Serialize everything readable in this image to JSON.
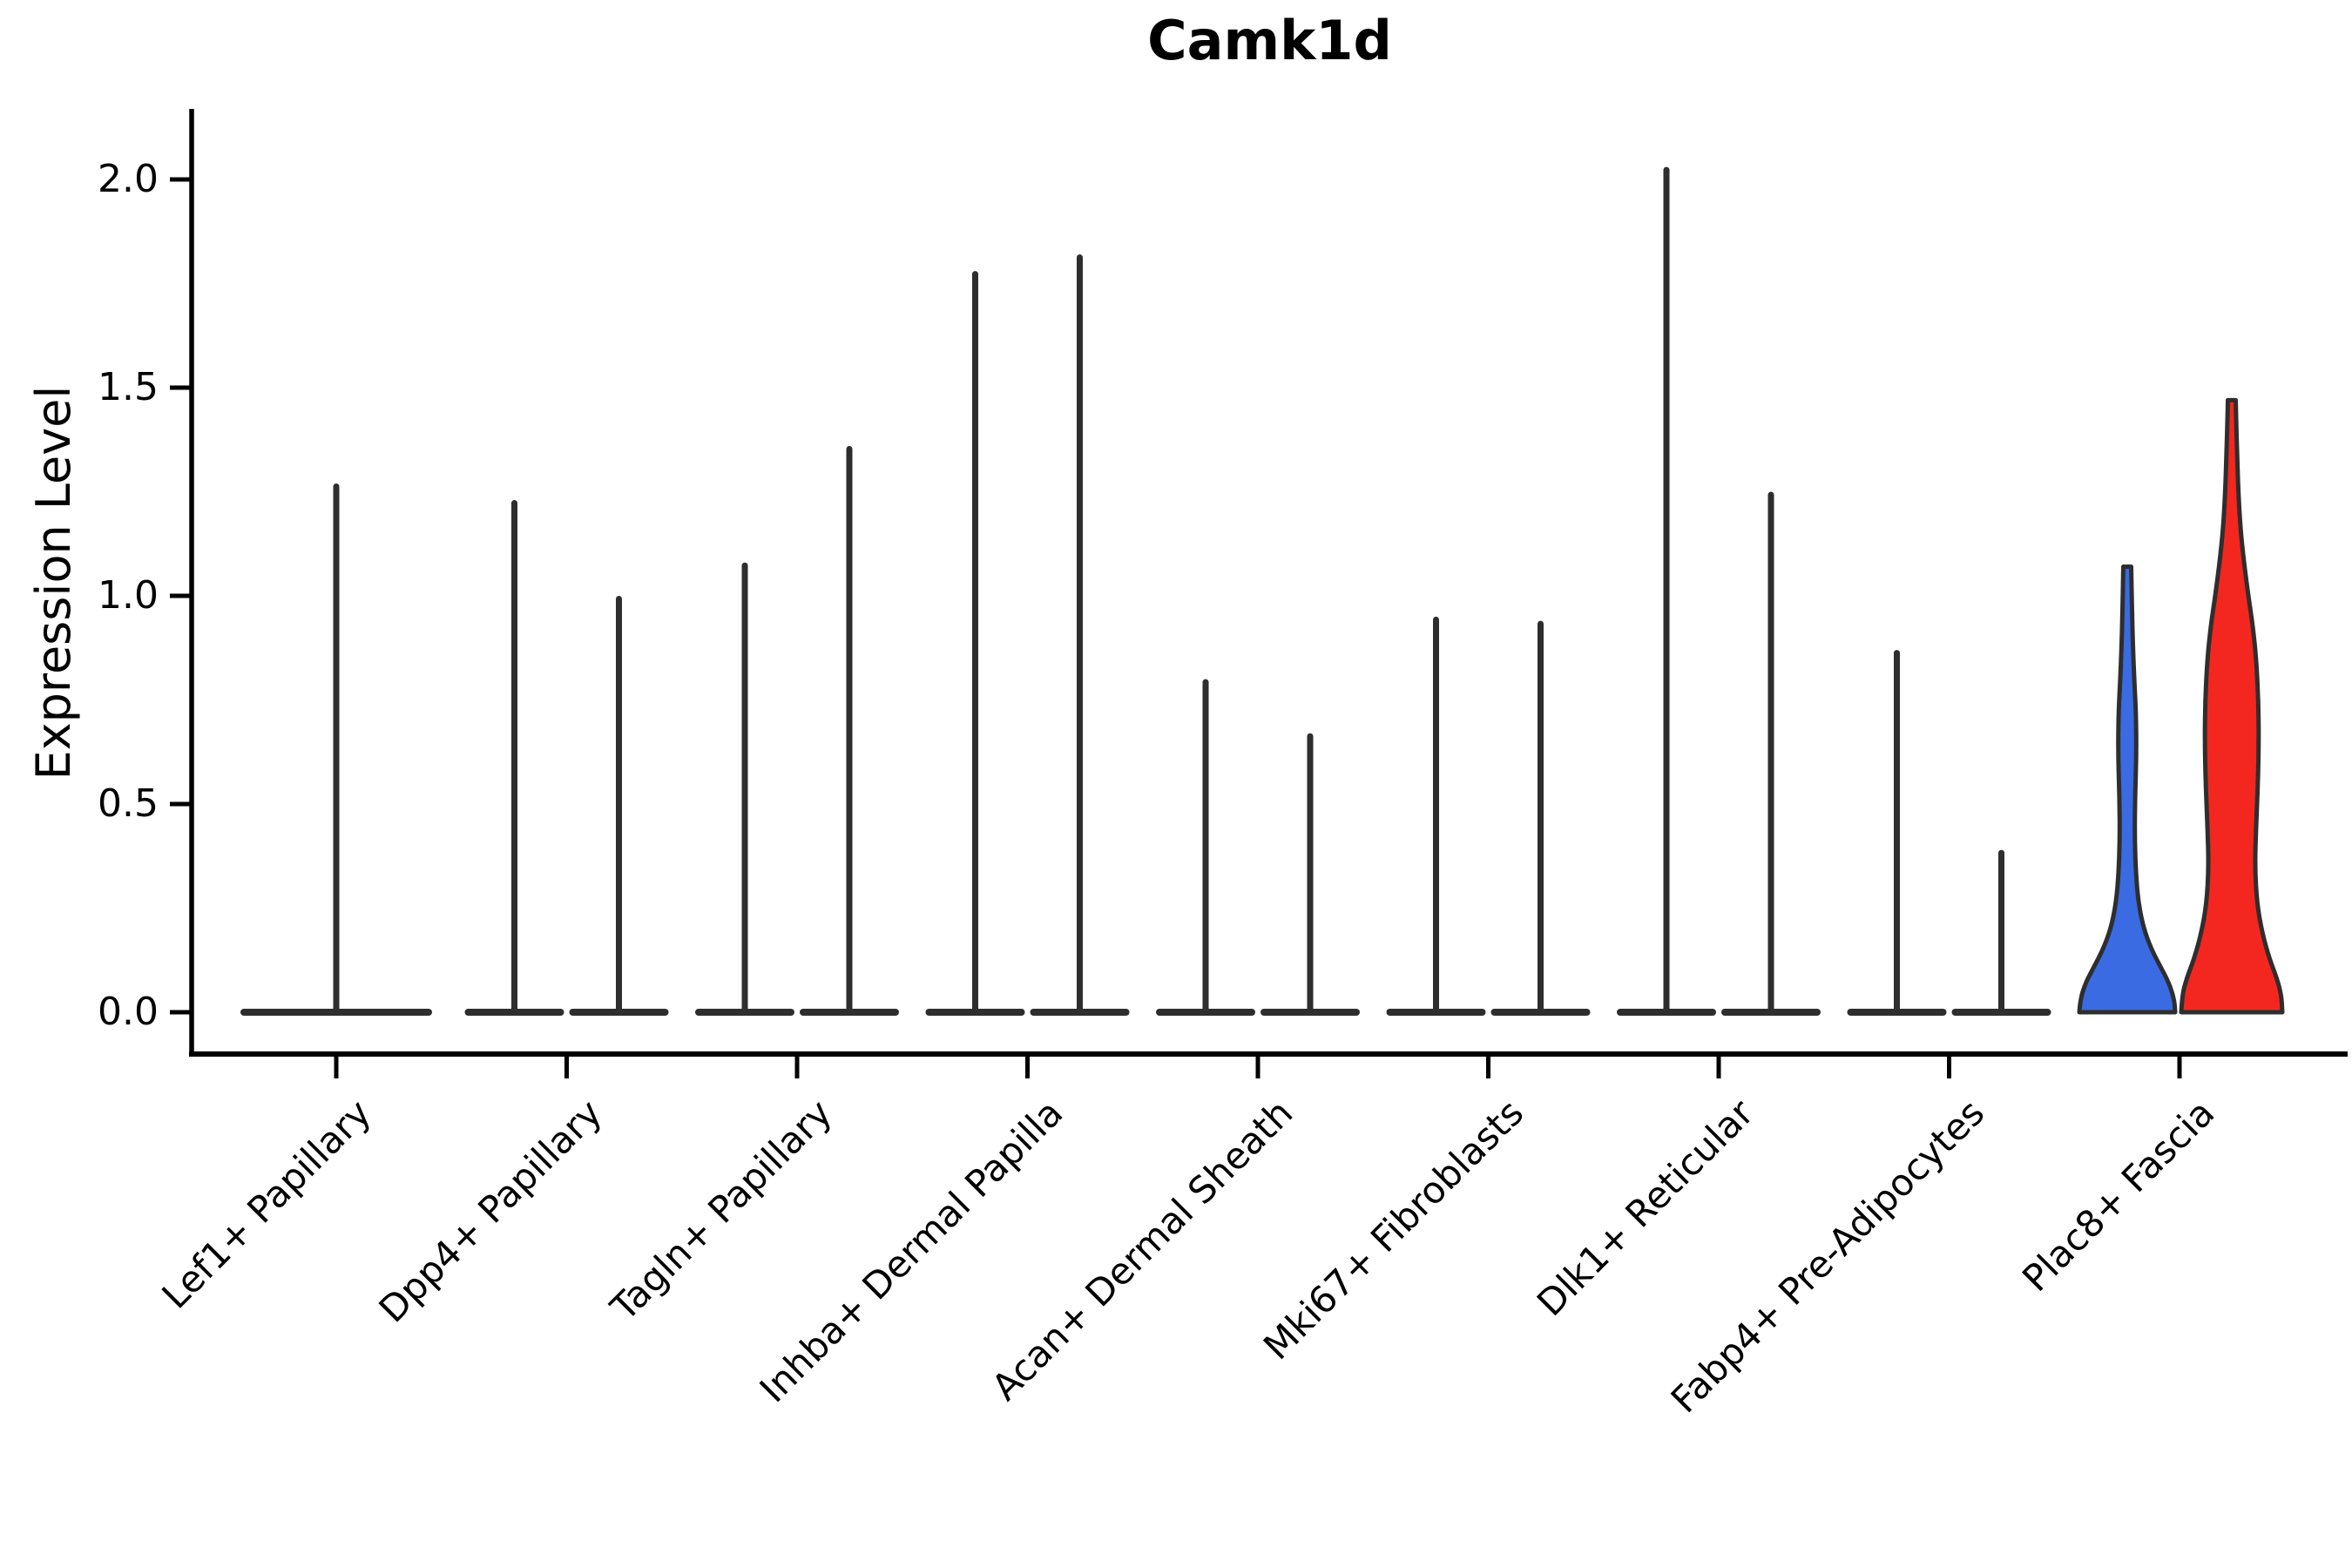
{
  "chart_data": {
    "type": "violin",
    "title": "Camk1d",
    "xlabel": "",
    "ylabel": "Expression Level",
    "ylim": [
      0,
      2.1
    ],
    "yticks": [
      0.0,
      0.5,
      1.0,
      1.5,
      2.0
    ],
    "ytick_labels": [
      "0.0",
      "0.5",
      "1.0",
      "1.5",
      "2.0"
    ],
    "grid": false,
    "legend": "none",
    "axis_color": "#000000",
    "violin_outline_color": "#2e2e2e",
    "categories": [
      "Lef1+ Papillary",
      "Dpp4+ Papillary",
      "Tagln+ Papillary",
      "Inhba+ Dermal Papilla",
      "Acan+ Dermal Sheath",
      "Mki67+ Fibroblasts",
      "Dlk1+ Reticular",
      "Fabp4+ Pre-Adipocytes",
      "Plac8+ Fascia"
    ],
    "violins": [
      {
        "category": "Lef1+ Papillary",
        "groups": [
          {
            "side": "center",
            "max": 1.27,
            "style": "spike",
            "fill": "#2e2e2e"
          }
        ]
      },
      {
        "category": "Dpp4+ Papillary",
        "groups": [
          {
            "side": "left",
            "max": 1.23,
            "style": "spike",
            "fill": "#2e2e2e"
          },
          {
            "side": "right",
            "max": 1.0,
            "style": "spike",
            "fill": "#2e2e2e"
          }
        ]
      },
      {
        "category": "Tagln+ Papillary",
        "groups": [
          {
            "side": "left",
            "max": 1.08,
            "style": "spike",
            "fill": "#2e2e2e"
          },
          {
            "side": "right",
            "max": 1.36,
            "style": "spike",
            "fill": "#2e2e2e"
          }
        ]
      },
      {
        "category": "Inhba+ Dermal Papilla",
        "groups": [
          {
            "side": "left",
            "max": 1.78,
            "style": "spike",
            "fill": "#2e2e2e"
          },
          {
            "side": "right",
            "max": 1.82,
            "style": "spike",
            "fill": "#2e2e2e"
          }
        ]
      },
      {
        "category": "Acan+ Dermal Sheath",
        "groups": [
          {
            "side": "left",
            "max": 0.8,
            "style": "spike",
            "fill": "#2e2e2e"
          },
          {
            "side": "right",
            "max": 0.67,
            "style": "spike",
            "fill": "#2e2e2e"
          }
        ]
      },
      {
        "category": "Mki67+ Fibroblasts",
        "groups": [
          {
            "side": "left",
            "max": 0.95,
            "style": "spike",
            "fill": "#2e2e2e"
          },
          {
            "side": "right",
            "max": 0.94,
            "style": "spike",
            "fill": "#2e2e2e"
          }
        ]
      },
      {
        "category": "Dlk1+ Reticular",
        "groups": [
          {
            "side": "left",
            "max": 2.03,
            "style": "spike",
            "fill": "#2e2e2e"
          },
          {
            "side": "right",
            "max": 1.25,
            "style": "spike",
            "fill": "#2e2e2e"
          }
        ]
      },
      {
        "category": "Fabp4+ Pre-Adipocytes",
        "groups": [
          {
            "side": "left",
            "max": 0.87,
            "style": "spike",
            "fill": "#2e2e2e"
          },
          {
            "side": "right",
            "max": 0.39,
            "style": "spike",
            "fill": "#2e2e2e"
          }
        ]
      },
      {
        "category": "Plac8+ Fascia",
        "groups": [
          {
            "side": "left",
            "max": 1.07,
            "style": "filled",
            "fill": "#3A6BE2",
            "profile": [
              [
                0.0,
                55
              ],
              [
                0.03,
                54
              ],
              [
                0.07,
                48
              ],
              [
                0.11,
                38
              ],
              [
                0.15,
                28
              ],
              [
                0.2,
                19
              ],
              [
                0.26,
                13
              ],
              [
                0.33,
                10
              ],
              [
                0.42,
                8.5
              ],
              [
                0.52,
                9
              ],
              [
                0.62,
                10.5
              ],
              [
                0.72,
                10
              ],
              [
                0.8,
                8
              ],
              [
                0.88,
                6.5
              ],
              [
                0.96,
                5.5
              ],
              [
                1.02,
                5
              ],
              [
                1.07,
                4.5
              ]
            ]
          },
          {
            "side": "right",
            "max": 1.47,
            "style": "filled",
            "fill": "#F3271F",
            "profile": [
              [
                0.0,
                58
              ],
              [
                0.04,
                57
              ],
              [
                0.08,
                52
              ],
              [
                0.13,
                43
              ],
              [
                0.19,
                35
              ],
              [
                0.26,
                29
              ],
              [
                0.35,
                26.5
              ],
              [
                0.45,
                28
              ],
              [
                0.55,
                30
              ],
              [
                0.65,
                31
              ],
              [
                0.75,
                30.5
              ],
              [
                0.85,
                28
              ],
              [
                0.93,
                24
              ],
              [
                1.0,
                19
              ],
              [
                1.08,
                14
              ],
              [
                1.16,
                10
              ],
              [
                1.25,
                7.5
              ],
              [
                1.35,
                6
              ],
              [
                1.42,
                5
              ],
              [
                1.47,
                4.5
              ]
            ]
          }
        ]
      }
    ]
  }
}
